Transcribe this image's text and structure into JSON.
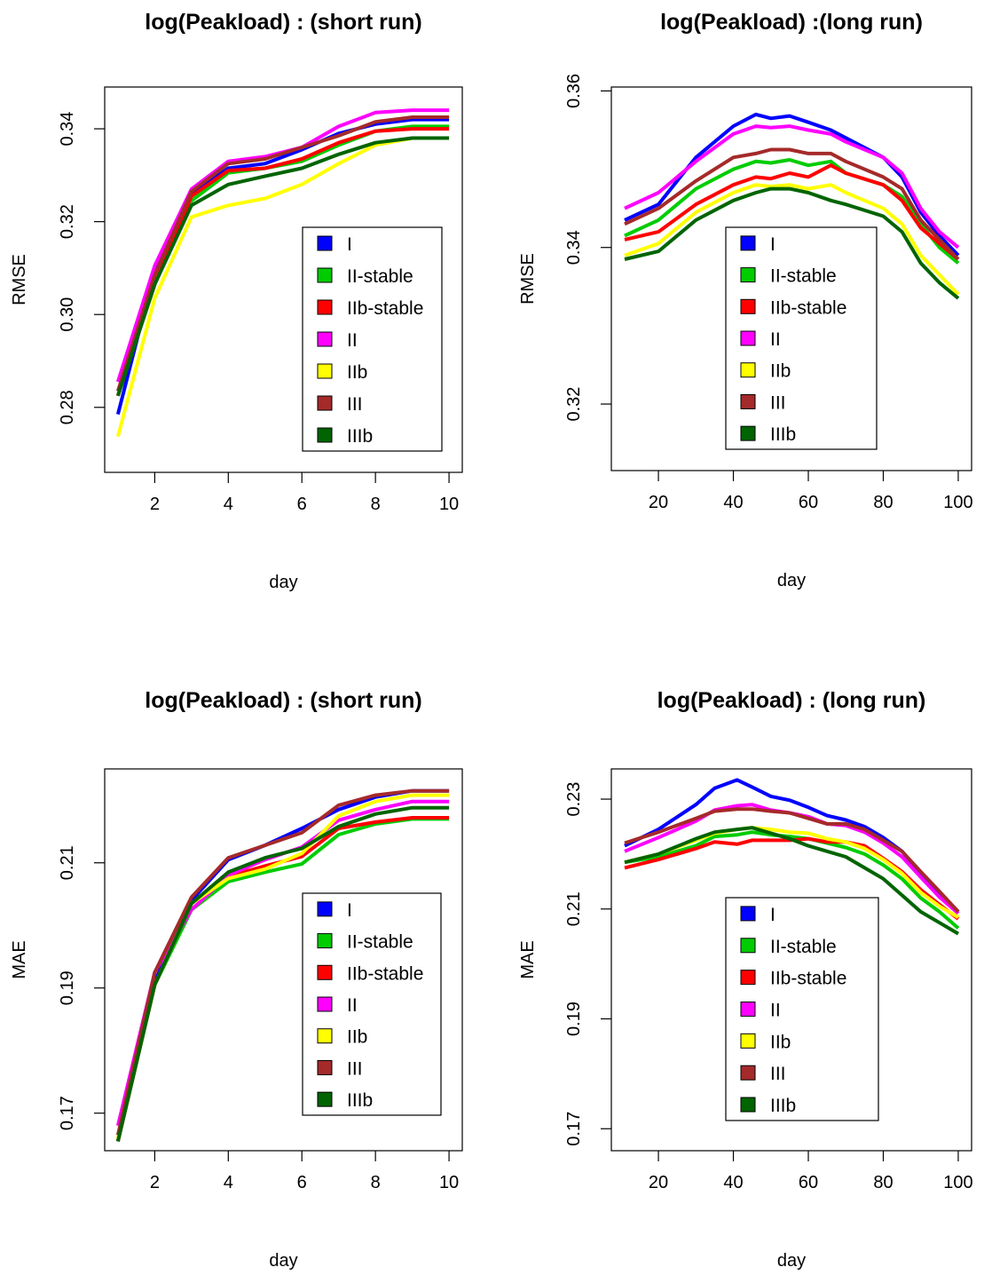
{
  "colors": {
    "I": "#0000ff",
    "II-stable": "#00cc00",
    "IIb-stable": "#ff0000",
    "II": "#ff00ff",
    "IIb": "#ffff00",
    "III": "#a52a2a",
    "IIIb": "#006400"
  },
  "chart_data": [
    {
      "type": "line",
      "title": "log(Peakload) : (short run)",
      "xlabel": "day",
      "ylabel": "RMSE",
      "xlim": [
        1,
        10
      ],
      "ylim": [
        0.266,
        0.349
      ],
      "xticks": [
        "2",
        "4",
        "6",
        "8",
        "10"
      ],
      "yticks": [
        "0.28",
        "0.30",
        "0.32",
        "0.34"
      ],
      "legend_position": "bottom-right",
      "x": [
        1,
        2,
        3,
        4,
        5,
        6,
        7,
        8,
        9,
        10
      ],
      "series": [
        {
          "name": "I",
          "values": [
            0.2785,
            0.3095,
            0.326,
            0.3315,
            0.3325,
            0.3355,
            0.339,
            0.341,
            0.342,
            0.342
          ]
        },
        {
          "name": "II-stable",
          "values": [
            0.2825,
            0.3065,
            0.3245,
            0.3305,
            0.3315,
            0.333,
            0.3365,
            0.3395,
            0.3405,
            0.3405
          ]
        },
        {
          "name": "IIb-stable",
          "values": [
            0.2825,
            0.3065,
            0.3255,
            0.331,
            0.3315,
            0.3335,
            0.337,
            0.3395,
            0.34,
            0.34
          ]
        },
        {
          "name": "II",
          "values": [
            0.2855,
            0.3105,
            0.327,
            0.333,
            0.334,
            0.336,
            0.3405,
            0.3435,
            0.344,
            0.344
          ]
        },
        {
          "name": "IIb",
          "values": [
            0.2737,
            0.3035,
            0.321,
            0.3235,
            0.325,
            0.328,
            0.3325,
            0.3365,
            0.338,
            0.338
          ]
        },
        {
          "name": "III",
          "values": [
            0.2835,
            0.3085,
            0.3265,
            0.3325,
            0.3335,
            0.336,
            0.3385,
            0.3415,
            0.3425,
            0.3425
          ]
        },
        {
          "name": "IIIb",
          "values": [
            0.2825,
            0.3065,
            0.3235,
            0.328,
            0.3298,
            0.3315,
            0.3345,
            0.337,
            0.338,
            0.338
          ]
        }
      ]
    },
    {
      "type": "line",
      "title": "log(Peakload) :(long run)",
      "xlabel": "day",
      "ylabel": "RMSE",
      "xlim": [
        11,
        100
      ],
      "ylim": [
        0.3115,
        0.3605
      ],
      "xticks": [
        "20",
        "40",
        "60",
        "80",
        "100"
      ],
      "yticks": [
        "0.32",
        "0.34",
        "0.36"
      ],
      "legend_position": "bottom-center",
      "x": [
        11,
        20,
        30,
        40,
        46,
        50,
        55,
        60,
        66,
        70,
        80,
        85,
        90,
        95,
        100
      ],
      "series": [
        {
          "name": "I",
          "values": [
            0.3435,
            0.3455,
            0.3515,
            0.3555,
            0.357,
            0.3565,
            0.3568,
            0.356,
            0.355,
            0.354,
            0.3515,
            0.349,
            0.3445,
            0.3415,
            0.339
          ]
        },
        {
          "name": "II-stable",
          "values": [
            0.3415,
            0.3435,
            0.3475,
            0.35,
            0.351,
            0.3508,
            0.3512,
            0.3505,
            0.351,
            0.3495,
            0.348,
            0.3465,
            0.343,
            0.34,
            0.338
          ]
        },
        {
          "name": "IIb-stable",
          "values": [
            0.341,
            0.342,
            0.3455,
            0.348,
            0.349,
            0.3488,
            0.3495,
            0.349,
            0.3505,
            0.3495,
            0.348,
            0.346,
            0.3425,
            0.3405,
            0.3385
          ]
        },
        {
          "name": "II",
          "values": [
            0.345,
            0.347,
            0.351,
            0.3545,
            0.3555,
            0.3553,
            0.3555,
            0.355,
            0.3545,
            0.3535,
            0.3515,
            0.3495,
            0.345,
            0.342,
            0.34
          ]
        },
        {
          "name": "IIb",
          "values": [
            0.339,
            0.3405,
            0.3445,
            0.347,
            0.348,
            0.3478,
            0.348,
            0.3475,
            0.348,
            0.347,
            0.345,
            0.343,
            0.339,
            0.3365,
            0.334
          ]
        },
        {
          "name": "III",
          "values": [
            0.343,
            0.345,
            0.3485,
            0.3515,
            0.352,
            0.3525,
            0.3525,
            0.352,
            0.352,
            0.351,
            0.349,
            0.3475,
            0.3435,
            0.341,
            0.3385
          ]
        },
        {
          "name": "IIIb",
          "values": [
            0.3385,
            0.3395,
            0.3435,
            0.346,
            0.347,
            0.3475,
            0.3475,
            0.347,
            0.346,
            0.3455,
            0.344,
            0.342,
            0.338,
            0.3355,
            0.3335
          ]
        }
      ]
    },
    {
      "type": "line",
      "title": "log(Peakload) : (short run)",
      "xlabel": "day",
      "ylabel": "MAE",
      "xlim": [
        1,
        10
      ],
      "ylim": [
        0.164,
        0.225
      ],
      "xticks": [
        "2",
        "4",
        "6",
        "8",
        "10"
      ],
      "yticks": [
        "0.17",
        "0.19",
        "0.21"
      ],
      "legend_position": "bottom-right",
      "x": [
        1,
        2,
        3,
        4,
        5,
        6,
        7,
        8,
        9,
        10
      ],
      "series": [
        {
          "name": "I",
          "values": [
            0.1655,
            0.191,
            0.204,
            0.2105,
            0.2128,
            0.2155,
            0.2185,
            0.2205,
            0.2215,
            0.2215
          ]
        },
        {
          "name": "II-stable",
          "values": [
            0.1655,
            0.1905,
            0.2025,
            0.207,
            0.2085,
            0.2098,
            0.2145,
            0.2162,
            0.217,
            0.217
          ]
        },
        {
          "name": "IIb-stable",
          "values": [
            0.1655,
            0.1905,
            0.2035,
            0.2078,
            0.2095,
            0.211,
            0.2155,
            0.2165,
            0.2172,
            0.2172
          ]
        },
        {
          "name": "II",
          "values": [
            0.168,
            0.1925,
            0.2025,
            0.208,
            0.2105,
            0.2125,
            0.2168,
            0.2185,
            0.2198,
            0.2198
          ]
        },
        {
          "name": "IIb",
          "values": [
            0.166,
            0.1905,
            0.2035,
            0.2075,
            0.209,
            0.2115,
            0.2175,
            0.2198,
            0.2208,
            0.2208
          ]
        },
        {
          "name": "III",
          "values": [
            0.1665,
            0.1925,
            0.2045,
            0.2108,
            0.2128,
            0.2148,
            0.2192,
            0.2208,
            0.2215,
            0.2215
          ]
        },
        {
          "name": "IIIb",
          "values": [
            0.1655,
            0.1905,
            0.2035,
            0.2085,
            0.2108,
            0.2123,
            0.2158,
            0.2178,
            0.2188,
            0.2188
          ]
        }
      ]
    },
    {
      "type": "line",
      "title": "log(Peakload) : (long run)",
      "xlabel": "day",
      "ylabel": "MAE",
      "xlim": [
        11,
        100
      ],
      "ylim": [
        0.166,
        0.2355
      ],
      "xticks": [
        "20",
        "40",
        "60",
        "80",
        "100"
      ],
      "yticks": [
        "0.17",
        "0.19",
        "0.21",
        "0.23"
      ],
      "legend_position": "bottom-center",
      "x": [
        11,
        20,
        30,
        35,
        41,
        45,
        50,
        55,
        60,
        65,
        70,
        75,
        80,
        85,
        90,
        95,
        100
      ],
      "series": [
        {
          "name": "I",
          "values": [
            0.2215,
            0.2245,
            0.229,
            0.232,
            0.2335,
            0.2322,
            0.2305,
            0.2298,
            0.2285,
            0.227,
            0.2262,
            0.225,
            0.223,
            0.2205,
            0.2165,
            0.213,
            0.2095
          ]
        },
        {
          "name": "II-stable",
          "values": [
            0.2185,
            0.2195,
            0.2215,
            0.2232,
            0.2235,
            0.224,
            0.2235,
            0.2232,
            0.2228,
            0.222,
            0.2212,
            0.22,
            0.218,
            0.2155,
            0.212,
            0.2095,
            0.2065
          ]
        },
        {
          "name": "IIb-stable",
          "values": [
            0.2175,
            0.219,
            0.221,
            0.2222,
            0.2218,
            0.2225,
            0.2225,
            0.2225,
            0.2228,
            0.2222,
            0.2222,
            0.2215,
            0.2192,
            0.2168,
            0.2135,
            0.2108,
            0.2082
          ]
        },
        {
          "name": "II",
          "values": [
            0.2205,
            0.223,
            0.226,
            0.228,
            0.2288,
            0.229,
            0.228,
            0.2275,
            0.2268,
            0.2255,
            0.2252,
            0.224,
            0.222,
            0.2195,
            0.2158,
            0.2122,
            0.2092
          ]
        },
        {
          "name": "IIb",
          "values": [
            0.2185,
            0.22,
            0.2225,
            0.2238,
            0.2245,
            0.2248,
            0.2245,
            0.224,
            0.2238,
            0.2228,
            0.2222,
            0.221,
            0.219,
            0.2165,
            0.213,
            0.2105,
            0.2085
          ]
        },
        {
          "name": "III",
          "values": [
            0.222,
            0.224,
            0.2265,
            0.2278,
            0.2282,
            0.2282,
            0.2278,
            0.2275,
            0.2265,
            0.2255,
            0.2255,
            0.2245,
            0.2225,
            0.2205,
            0.2168,
            0.2132,
            0.2095
          ]
        },
        {
          "name": "IIIb",
          "values": [
            0.2185,
            0.22,
            0.2228,
            0.224,
            0.2245,
            0.2248,
            0.2238,
            0.2228,
            0.2215,
            0.2205,
            0.2195,
            0.2175,
            0.2155,
            0.2125,
            0.2095,
            0.2075,
            0.2055
          ]
        }
      ]
    }
  ]
}
